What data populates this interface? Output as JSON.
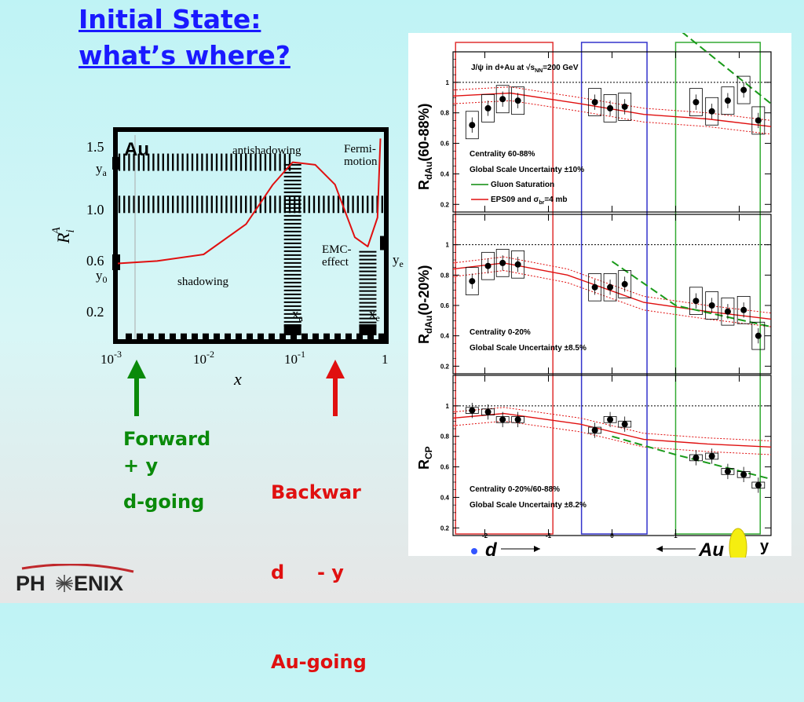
{
  "title_line1": "Initial State:",
  "title_line2": "what’s where?",
  "left_chart": {
    "inset_label": "Au",
    "ylabel_base": "R",
    "ylabel_sub": "i",
    "ylabel_sup": "A",
    "xlabel": "x",
    "y_ticks": [
      "1.5",
      "1.0",
      "0.6",
      "0.2"
    ],
    "x_ticks": [
      {
        "base": "10",
        "exp": "-3"
      },
      {
        "base": "10",
        "exp": "-2"
      },
      {
        "base": "10",
        "exp": "-1"
      },
      {
        "base": "1",
        "exp": ""
      }
    ],
    "annot": {
      "antishadowing": "antishadowing",
      "fermi1": "Fermi-",
      "fermi2": "motion",
      "emc1": "EMC-",
      "emc2": "effect",
      "shadowing": "shadowing",
      "ya": "y",
      "ya_sub": "a",
      "y0": "y",
      "y0_sub": "0",
      "ye": "y",
      "ye_sub": "e",
      "xa": "x",
      "xa_sub": "a",
      "xe": "x",
      "xe_sub": "e"
    }
  },
  "labels": {
    "forward_1": "Forward",
    "forward_2": "+ y",
    "forward_3": "d-going",
    "backward_1": "Backwar",
    "backward_2": "d     - y",
    "backward_3": "Au-going"
  },
  "colors": {
    "forward": "#0a8a0a",
    "backward": "#e01010",
    "title": "#1a1aff"
  },
  "right_panel": {
    "xlabel": "y",
    "x_ticks": [
      "-2",
      "-1",
      "0",
      "1",
      "2"
    ],
    "d_label": "d",
    "au_label": "Au",
    "y_ticks": [
      "0.2",
      "0.4",
      "0.6",
      "0.8",
      "1"
    ],
    "panels": [
      {
        "ylabel": "R",
        "ylabel_sub": "dAu",
        "ylabel_rest": "(60-88%)",
        "header": "J/ψ in d+Au at √s",
        "header_sub": "NN",
        "header_tail": "=200 GeV",
        "line1": "Centrality 60-88%",
        "line2": "Global Scale Uncertainty ±10%",
        "legend_green": "Gluon Saturation",
        "legend_red": "EPS09 and σ",
        "legend_red_sub": "br",
        "legend_red_tail": "=4 mb"
      },
      {
        "ylabel": "R",
        "ylabel_sub": "dAu",
        "ylabel_rest": "(0-20%)",
        "line1": "Centrality 0-20%",
        "line2": "Global Scale Uncertainty ±8.5%"
      },
      {
        "ylabel": "R",
        "ylabel_sub": "CP",
        "ylabel_rest": "",
        "line1": "Centrality 0-20%/60-88%",
        "line2": "Global Scale Uncertainty ±8.2%"
      }
    ]
  },
  "chart_data": [
    {
      "type": "line",
      "title": "",
      "xlabel": "x",
      "ylabel": "R_i^A",
      "xscale": "log",
      "xlim": [
        0.001,
        1
      ],
      "ylim": [
        0.0,
        1.55
      ],
      "series": [
        {
          "name": "",
          "x": [
            0.001,
            0.003,
            0.01,
            0.03,
            0.06,
            0.1,
            0.18,
            0.3,
            0.5,
            0.7,
            0.9,
            0.97
          ],
          "y": [
            0.55,
            0.57,
            0.62,
            0.85,
            1.15,
            1.32,
            1.3,
            1.15,
            0.75,
            0.68,
            0.9,
            1.5
          ]
        }
      ]
    },
    {
      "type": "scatter",
      "title": "",
      "xlabel": "y",
      "ylabel": "RdAu(60-88%)",
      "xlim": [
        -2.5,
        2.5
      ],
      "ylim": [
        0.15,
        1.2
      ],
      "x": [
        -2.2,
        -1.95,
        -1.72,
        -1.48,
        -0.27,
        -0.03,
        0.2,
        1.32,
        1.57,
        1.82,
        2.07,
        2.3
      ],
      "y": [
        0.72,
        0.83,
        0.89,
        0.88,
        0.87,
        0.83,
        0.84,
        0.87,
        0.81,
        0.88,
        0.95,
        0.75
      ]
    },
    {
      "type": "scatter",
      "title": "",
      "xlabel": "y",
      "ylabel": "RdAu(0-20%)",
      "xlim": [
        -2.5,
        2.5
      ],
      "ylim": [
        0.15,
        1.2
      ],
      "x": [
        -2.2,
        -1.95,
        -1.72,
        -1.48,
        -0.27,
        -0.03,
        0.2,
        1.32,
        1.57,
        1.82,
        2.07,
        2.3
      ],
      "y": [
        0.76,
        0.86,
        0.88,
        0.87,
        0.72,
        0.72,
        0.74,
        0.63,
        0.6,
        0.56,
        0.57,
        0.4
      ]
    },
    {
      "type": "scatter",
      "title": "",
      "xlabel": "y",
      "ylabel": "RCP",
      "xlim": [
        -2.5,
        2.5
      ],
      "ylim": [
        0.15,
        1.2
      ],
      "x": [
        -2.2,
        -1.95,
        -1.72,
        -1.48,
        -0.27,
        -0.03,
        0.2,
        1.32,
        1.57,
        1.82,
        2.07,
        2.3
      ],
      "y": [
        0.97,
        0.96,
        0.91,
        0.91,
        0.84,
        0.91,
        0.88,
        0.66,
        0.67,
        0.57,
        0.55,
        0.48
      ]
    }
  ]
}
